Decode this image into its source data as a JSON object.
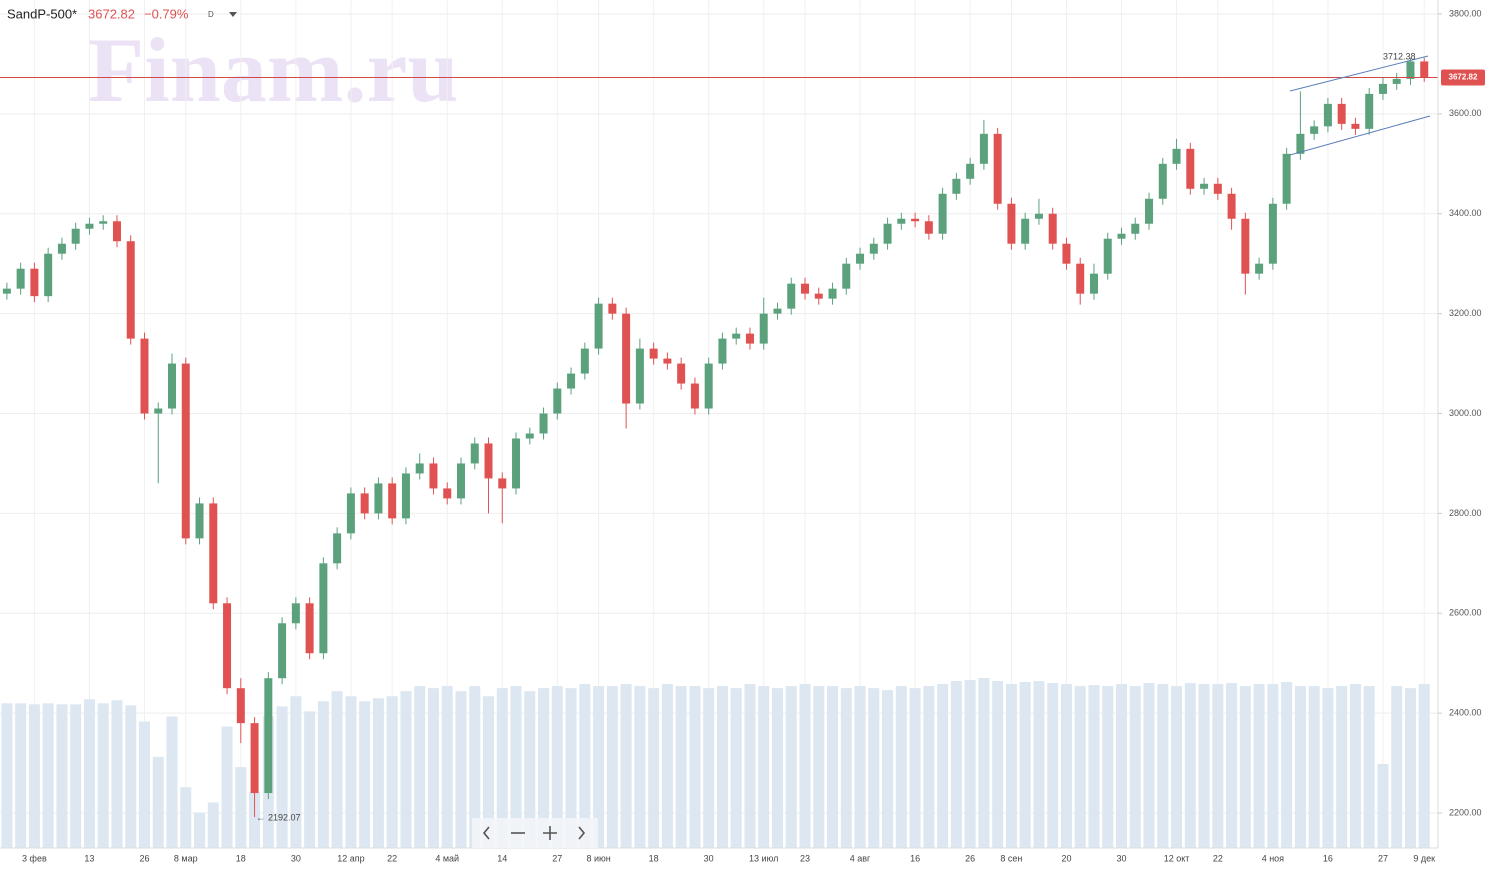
{
  "header": {
    "symbol": "SandP-500*",
    "change": "−0.79%",
    "interval": "D"
  },
  "watermark": "Finam.ru",
  "chart_data": {
    "type": "candlestick",
    "categories": [
      null,
      null,
      "3 фев",
      null,
      null,
      null,
      "13",
      null,
      null,
      null,
      "26",
      null,
      null,
      "8 мар",
      null,
      null,
      null,
      "18",
      null,
      null,
      null,
      "30",
      null,
      null,
      null,
      "12 апр",
      null,
      null,
      "22",
      null,
      null,
      null,
      "4 май",
      null,
      null,
      null,
      "14",
      null,
      null,
      null,
      "27",
      null,
      null,
      "8 июн",
      null,
      null,
      null,
      "18",
      null,
      null,
      null,
      "30",
      null,
      null,
      null,
      "13 июл",
      null,
      null,
      "23",
      null,
      null,
      null,
      "4 авг",
      null,
      null,
      null,
      "16",
      null,
      null,
      null,
      "26",
      null,
      null,
      "8 сен",
      null,
      null,
      null,
      "20",
      null,
      null,
      null,
      "30",
      null,
      null,
      null,
      "12 окт",
      null,
      null,
      "22",
      null,
      null,
      null,
      "4 ноя",
      null,
      null,
      null,
      "16",
      null,
      null,
      null,
      "27",
      null,
      null,
      "9 дек"
    ],
    "open": [
      3240,
      3250,
      3290,
      3235,
      3320,
      3340,
      3370,
      3380,
      3385,
      3345,
      3150,
      3000,
      3010,
      3100,
      2750,
      2820,
      2620,
      2450,
      2380,
      2240,
      2470,
      2580,
      2620,
      2520,
      2700,
      2760,
      2840,
      2800,
      2860,
      2790,
      2880,
      2900,
      2850,
      2830,
      2900,
      2940,
      2870,
      2850,
      2950,
      2960,
      3000,
      3050,
      3080,
      3130,
      3220,
      3200,
      3020,
      3130,
      3110,
      3100,
      3060,
      3010,
      3100,
      3150,
      3160,
      3140,
      3200,
      3210,
      3260,
      3240,
      3230,
      3250,
      3300,
      3320,
      3340,
      3380,
      3390,
      3385,
      3360,
      3440,
      3470,
      3500,
      3560,
      3420,
      3340,
      3390,
      3400,
      3340,
      3300,
      3240,
      3280,
      3350,
      3360,
      3380,
      3430,
      3500,
      3530,
      3450,
      3460,
      3440,
      3390,
      3280,
      3300,
      3420,
      3520,
      3560,
      3575,
      3620,
      3580,
      3570,
      3640,
      3660,
      3670,
      3705
    ],
    "high": [
      3262,
      3302,
      3302,
      3332,
      3352,
      3382,
      3392,
      3397,
      3397,
      3357,
      3162,
      3022,
      3120,
      3112,
      2832,
      2832,
      2632,
      2470,
      2392,
      2482,
      2592,
      2632,
      2632,
      2712,
      2772,
      2852,
      2852,
      2872,
      2872,
      2892,
      2920,
      2912,
      2862,
      2912,
      2952,
      2952,
      2882,
      2962,
      2972,
      3012,
      3062,
      3092,
      3142,
      3232,
      3232,
      3212,
      3150,
      3142,
      3122,
      3112,
      3072,
      3112,
      3162,
      3172,
      3172,
      3232,
      3222,
      3272,
      3272,
      3252,
      3262,
      3312,
      3332,
      3352,
      3392,
      3402,
      3402,
      3397,
      3452,
      3482,
      3512,
      3588,
      3572,
      3432,
      3402,
      3430,
      3412,
      3352,
      3312,
      3300,
      3362,
      3372,
      3392,
      3442,
      3512,
      3550,
      3542,
      3472,
      3472,
      3452,
      3402,
      3312,
      3432,
      3532,
      3645,
      3587,
      3632,
      3632,
      3592,
      3652,
      3672,
      3682,
      3712,
      3712.38
    ],
    "low": [
      3228,
      3238,
      3223,
      3223,
      3308,
      3328,
      3358,
      3368,
      3333,
      3138,
      2988,
      2860,
      2998,
      2738,
      2738,
      2608,
      2438,
      2340,
      2192.07,
      2228,
      2458,
      2568,
      2508,
      2508,
      2688,
      2748,
      2788,
      2788,
      2778,
      2778,
      2868,
      2838,
      2818,
      2818,
      2888,
      2800,
      2780,
      2838,
      2938,
      2948,
      2988,
      3038,
      3068,
      3118,
      3188,
      2970,
      3008,
      3098,
      3088,
      3048,
      2998,
      2998,
      3088,
      3138,
      3128,
      3128,
      3188,
      3198,
      3228,
      3218,
      3218,
      3238,
      3288,
      3308,
      3328,
      3368,
      3373,
      3348,
      3348,
      3428,
      3458,
      3488,
      3408,
      3328,
      3328,
      3378,
      3328,
      3288,
      3218,
      3228,
      3268,
      3338,
      3348,
      3368,
      3418,
      3488,
      3438,
      3438,
      3428,
      3368,
      3238,
      3268,
      3288,
      3408,
      3508,
      3548,
      3563,
      3568,
      3558,
      3558,
      3628,
      3648,
      3658,
      3664
    ],
    "close": [
      3250,
      3290,
      3235,
      3320,
      3340,
      3370,
      3380,
      3385,
      3345,
      3150,
      3000,
      3010,
      3100,
      2750,
      2820,
      2620,
      2450,
      2380,
      2240,
      2470,
      2580,
      2620,
      2520,
      2700,
      2760,
      2840,
      2800,
      2860,
      2790,
      2880,
      2900,
      2850,
      2830,
      2900,
      2940,
      2870,
      2850,
      2950,
      2960,
      3000,
      3050,
      3080,
      3130,
      3220,
      3200,
      3020,
      3130,
      3110,
      3100,
      3060,
      3010,
      3100,
      3150,
      3160,
      3140,
      3200,
      3210,
      3260,
      3240,
      3230,
      3250,
      3300,
      3320,
      3340,
      3380,
      3390,
      3385,
      3360,
      3440,
      3470,
      3500,
      3560,
      3420,
      3340,
      3390,
      3400,
      3340,
      3300,
      3240,
      3280,
      3350,
      3360,
      3380,
      3430,
      3500,
      3530,
      3450,
      3460,
      3440,
      3390,
      3280,
      3300,
      3420,
      3520,
      3560,
      3575,
      3620,
      3580,
      3570,
      3640,
      3660,
      3670,
      3705,
      3672.82
    ],
    "volume": [
      143,
      143,
      142,
      143,
      142,
      142,
      147,
      143,
      146,
      141,
      125,
      90,
      130,
      60,
      35,
      45,
      120,
      80,
      55,
      130,
      140,
      150,
      135,
      145,
      155,
      150,
      145,
      148,
      150,
      155,
      160,
      158,
      160,
      155,
      160,
      150,
      158,
      160,
      155,
      158,
      160,
      158,
      162,
      160,
      160,
      162,
      160,
      158,
      162,
      160,
      160,
      158,
      160,
      158,
      162,
      160,
      158,
      160,
      162,
      160,
      160,
      158,
      160,
      158,
      156,
      160,
      158,
      160,
      162,
      165,
      166,
      168,
      165,
      162,
      164,
      165,
      163,
      162,
      160,
      161,
      160,
      162,
      160,
      163,
      162,
      160,
      163,
      162,
      162,
      163,
      160,
      162,
      162,
      164,
      160,
      160,
      158,
      160,
      162,
      160,
      83,
      160,
      158,
      162
    ],
    "up_color": "#5aa17c",
    "down_color": "#e05252",
    "volume_color": "#dde7f1",
    "ylim": [
      2130,
      3828
    ],
    "yticks": [
      {
        "value": 2200,
        "label": "2200.00"
      },
      {
        "value": 2400,
        "label": "2400.00"
      },
      {
        "value": 2600,
        "label": "2600.00"
      },
      {
        "value": 2800,
        "label": "2800.00"
      },
      {
        "value": 3000,
        "label": "3000.00"
      },
      {
        "value": 3200,
        "label": "3200.00"
      },
      {
        "value": 3400,
        "label": "3400.00"
      },
      {
        "value": 3600,
        "label": "3600.00"
      },
      {
        "value": 3800,
        "label": "3800.00"
      }
    ],
    "grid": true
  }
}
